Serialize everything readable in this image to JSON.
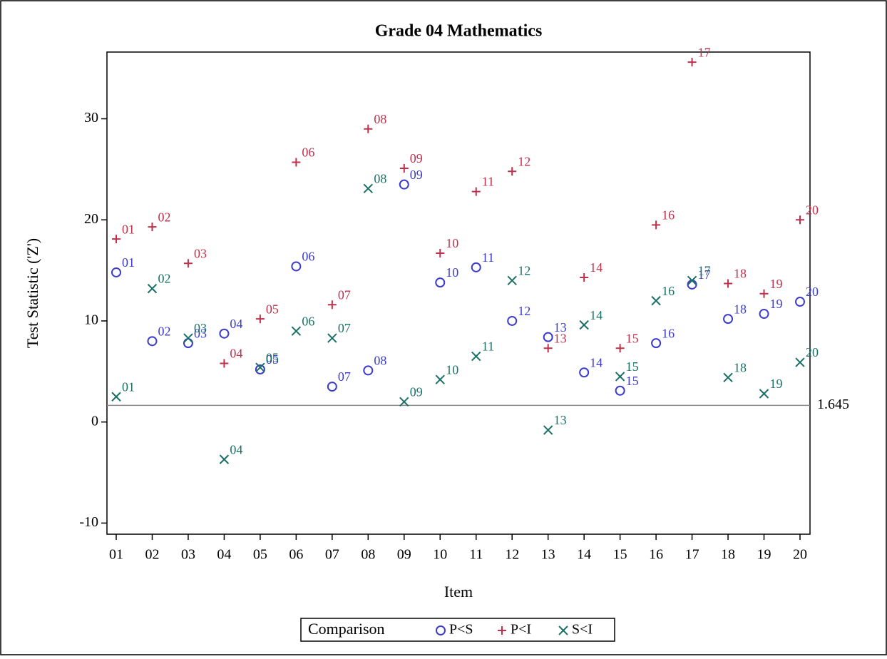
{
  "chart_data": {
    "type": "scatter",
    "title": "Grade 04 Mathematics",
    "x_label": "Item",
    "y_label": "Test Statistic ('Z')",
    "categories": [
      "01",
      "02",
      "03",
      "04",
      "05",
      "06",
      "07",
      "08",
      "09",
      "10",
      "11",
      "12",
      "13",
      "14",
      "15",
      "16",
      "17",
      "18",
      "19",
      "20"
    ],
    "series": [
      {
        "name": "P<S",
        "color": "#3b3bcc",
        "marker": "circle",
        "values": [
          14.8,
          8.0,
          7.8,
          8.75,
          5.2,
          15.4,
          3.5,
          5.1,
          23.5,
          13.8,
          15.3,
          10.0,
          8.4,
          4.9,
          3.1,
          7.8,
          13.6,
          10.2,
          10.7,
          11.9
        ]
      },
      {
        "name": "P<I",
        "color": "#c0304a",
        "marker": "plus",
        "values": [
          18.1,
          19.3,
          15.7,
          5.8,
          10.2,
          25.7,
          11.6,
          29.0,
          25.1,
          16.7,
          22.8,
          24.8,
          7.3,
          14.3,
          7.3,
          19.5,
          35.6,
          13.7,
          12.7,
          20.0
        ]
      },
      {
        "name": "S<I",
        "color": "#1a7066",
        "marker": "x",
        "values": [
          2.5,
          13.2,
          8.3,
          -3.7,
          5.4,
          9.0,
          8.3,
          23.1,
          2.0,
          4.2,
          6.5,
          14.0,
          -0.8,
          9.6,
          4.5,
          12.0,
          14.0,
          4.4,
          2.8,
          5.9
        ]
      }
    ],
    "ylim": [
      -11.1,
      36.6
    ],
    "yticks": [
      -10,
      0,
      10,
      20,
      30
    ],
    "reference_line": {
      "value": 1.645,
      "label": "1.645"
    },
    "legend_title": "Comparison",
    "legend_position": "bottom"
  }
}
